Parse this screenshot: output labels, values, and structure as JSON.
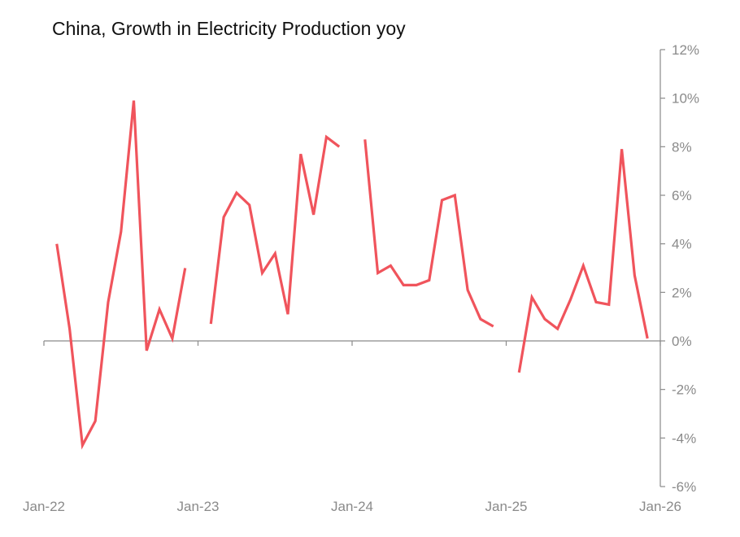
{
  "chart_data": {
    "type": "line",
    "title": "China, Growth in Electricity Production yoy",
    "xlabel": "",
    "ylabel": "",
    "x_ticks": [
      "Jan-22",
      "Jan-23",
      "Jan-24",
      "Jan-25",
      "Jan-26"
    ],
    "y_ticks": [
      "12%",
      "10%",
      "8%",
      "6%",
      "4%",
      "2%",
      "0%",
      "-2%",
      "-4%",
      "-6%"
    ],
    "ylim": [
      -6,
      12
    ],
    "xlim": [
      "2022-01",
      "2026-01"
    ],
    "y_axis_position": "right",
    "grid": false,
    "series_color": "#f0545c",
    "series": [
      {
        "name": "",
        "points": [
          {
            "x": "2022-02",
            "y": 4.0
          },
          {
            "x": "2022-03",
            "y": 0.5
          },
          {
            "x": "2022-04",
            "y": -4.3
          },
          {
            "x": "2022-05",
            "y": -3.3
          },
          {
            "x": "2022-06",
            "y": 1.6
          },
          {
            "x": "2022-07",
            "y": 4.5
          },
          {
            "x": "2022-08",
            "y": 9.9
          },
          {
            "x": "2022-09",
            "y": -0.4
          },
          {
            "x": "2022-10",
            "y": 1.3
          },
          {
            "x": "2022-11",
            "y": 0.1
          },
          {
            "x": "2022-12",
            "y": 3.0
          },
          {
            "x": "2023-01",
            "y": null
          },
          {
            "x": "2023-02",
            "y": 0.7
          },
          {
            "x": "2023-03",
            "y": 5.1
          },
          {
            "x": "2023-04",
            "y": 6.1
          },
          {
            "x": "2023-05",
            "y": 5.6
          },
          {
            "x": "2023-06",
            "y": 2.8
          },
          {
            "x": "2023-07",
            "y": 3.6
          },
          {
            "x": "2023-08",
            "y": 1.1
          },
          {
            "x": "2023-09",
            "y": 7.7
          },
          {
            "x": "2023-10",
            "y": 5.2
          },
          {
            "x": "2023-11",
            "y": 8.4
          },
          {
            "x": "2023-12",
            "y": 8.0
          },
          {
            "x": "2024-01",
            "y": null
          },
          {
            "x": "2024-02",
            "y": 8.3
          },
          {
            "x": "2024-03",
            "y": 2.8
          },
          {
            "x": "2024-04",
            "y": 3.1
          },
          {
            "x": "2024-05",
            "y": 2.3
          },
          {
            "x": "2024-06",
            "y": 2.3
          },
          {
            "x": "2024-07",
            "y": 2.5
          },
          {
            "x": "2024-08",
            "y": 5.8
          },
          {
            "x": "2024-09",
            "y": 6.0
          },
          {
            "x": "2024-10",
            "y": 2.1
          },
          {
            "x": "2024-11",
            "y": 0.9
          },
          {
            "x": "2024-12",
            "y": 0.6
          },
          {
            "x": "2025-01",
            "y": null
          },
          {
            "x": "2025-02",
            "y": -1.3
          },
          {
            "x": "2025-03",
            "y": 1.8
          },
          {
            "x": "2025-04",
            "y": 0.9
          },
          {
            "x": "2025-05",
            "y": 0.5
          },
          {
            "x": "2025-06",
            "y": 1.7
          },
          {
            "x": "2025-07",
            "y": 3.1
          },
          {
            "x": "2025-08",
            "y": 1.6
          },
          {
            "x": "2025-09",
            "y": 1.5
          },
          {
            "x": "2025-10",
            "y": 7.9
          },
          {
            "x": "2025-11",
            "y": 2.7
          },
          {
            "x": "2025-12",
            "y": 0.1
          }
        ]
      }
    ]
  }
}
